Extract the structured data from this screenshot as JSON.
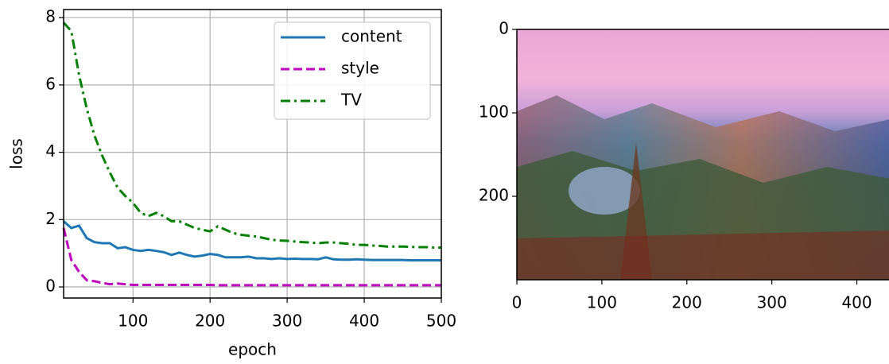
{
  "chart_data": [
    {
      "type": "line",
      "xlabel": "epoch",
      "ylabel": "loss",
      "x": [
        10,
        20,
        30,
        40,
        50,
        60,
        70,
        80,
        90,
        100,
        110,
        120,
        130,
        140,
        150,
        160,
        170,
        180,
        190,
        200,
        210,
        220,
        230,
        240,
        250,
        260,
        270,
        280,
        290,
        300,
        310,
        320,
        330,
        340,
        350,
        360,
        370,
        380,
        390,
        400,
        410,
        420,
        430,
        440,
        450,
        460,
        470,
        480,
        490,
        500
      ],
      "series": [
        {
          "name": "content",
          "color": "#1f77b4",
          "dash": "solid",
          "values": [
            1.95,
            1.75,
            1.82,
            1.45,
            1.33,
            1.3,
            1.3,
            1.15,
            1.18,
            1.1,
            1.07,
            1.1,
            1.07,
            1.03,
            0.95,
            1.02,
            0.95,
            0.9,
            0.93,
            0.98,
            0.95,
            0.88,
            0.88,
            0.88,
            0.9,
            0.85,
            0.85,
            0.83,
            0.85,
            0.83,
            0.84,
            0.83,
            0.83,
            0.82,
            0.88,
            0.82,
            0.81,
            0.81,
            0.82,
            0.81,
            0.8,
            0.8,
            0.8,
            0.8,
            0.8,
            0.79,
            0.79,
            0.79,
            0.79,
            0.79
          ]
        },
        {
          "name": "style",
          "color": "#bf00bf",
          "dash": "dashed",
          "values": [
            1.75,
            0.8,
            0.45,
            0.2,
            0.17,
            0.12,
            0.08,
            0.1,
            0.08,
            0.06,
            0.06,
            0.06,
            0.06,
            0.06,
            0.06,
            0.06,
            0.06,
            0.06,
            0.06,
            0.06,
            0.05,
            0.05,
            0.05,
            0.05,
            0.05,
            0.05,
            0.05,
            0.05,
            0.05,
            0.05,
            0.05,
            0.05,
            0.05,
            0.05,
            0.05,
            0.05,
            0.05,
            0.05,
            0.05,
            0.05,
            0.05,
            0.05,
            0.05,
            0.05,
            0.05,
            0.05,
            0.05,
            0.05,
            0.05,
            0.05
          ]
        },
        {
          "name": "TV",
          "color": "#008000",
          "dash": "dashdot",
          "values": [
            7.85,
            7.6,
            6.3,
            5.3,
            4.5,
            3.9,
            3.4,
            2.95,
            2.7,
            2.5,
            2.2,
            2.1,
            2.2,
            2.1,
            1.95,
            1.95,
            1.85,
            1.75,
            1.7,
            1.65,
            1.8,
            1.7,
            1.6,
            1.55,
            1.52,
            1.5,
            1.45,
            1.4,
            1.38,
            1.37,
            1.35,
            1.33,
            1.32,
            1.3,
            1.32,
            1.32,
            1.3,
            1.28,
            1.25,
            1.25,
            1.23,
            1.22,
            1.2,
            1.2,
            1.2,
            1.19,
            1.18,
            1.18,
            1.17,
            1.17
          ]
        }
      ],
      "xlim": [
        10,
        500
      ],
      "xticks": [
        100,
        200,
        300,
        400,
        500
      ],
      "ylim": [
        -0.33,
        8.24
      ],
      "yticks": [
        0,
        2,
        4,
        6,
        8
      ],
      "grid": true,
      "legend": "upper-right"
    },
    {
      "type": "image",
      "xlim": [
        0,
        450
      ],
      "xticks": [
        0,
        100,
        200,
        300,
        400
      ],
      "ylim": [
        300,
        0
      ],
      "yticks": [
        0,
        100,
        200
      ]
    }
  ]
}
